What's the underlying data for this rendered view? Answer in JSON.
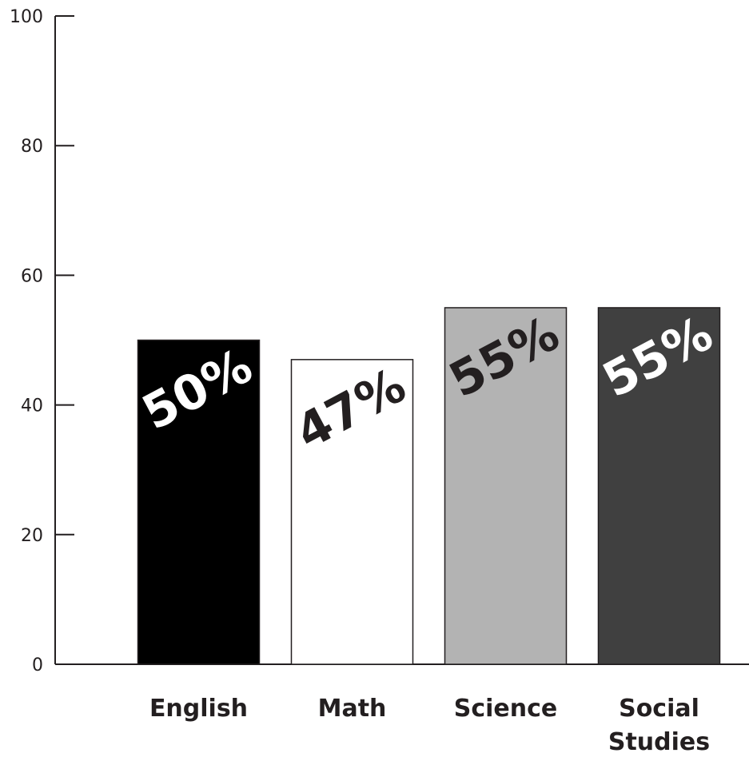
{
  "chart_data": {
    "type": "bar",
    "categories": [
      "English",
      "Math",
      "Science",
      "Social Studies"
    ],
    "category_label_lines": [
      [
        "English"
      ],
      [
        "Math"
      ],
      [
        "Science"
      ],
      [
        "Social",
        "Studies"
      ]
    ],
    "values": [
      50,
      47,
      55,
      55
    ],
    "data_labels": [
      "50%",
      "47%",
      "55%",
      "55%"
    ],
    "bar_colors": [
      "#000000",
      "#ffffff",
      "#b3b3b3",
      "#404040"
    ],
    "bar_label_colors": [
      "#ffffff",
      "#231f20",
      "#231f20",
      "#ffffff"
    ],
    "yticks": [
      "0",
      "20",
      "40",
      "60",
      "80",
      "100"
    ],
    "ylim": [
      0,
      100
    ],
    "title": "",
    "xlabel": "",
    "ylabel": "",
    "grid": false,
    "legend": "none"
  }
}
